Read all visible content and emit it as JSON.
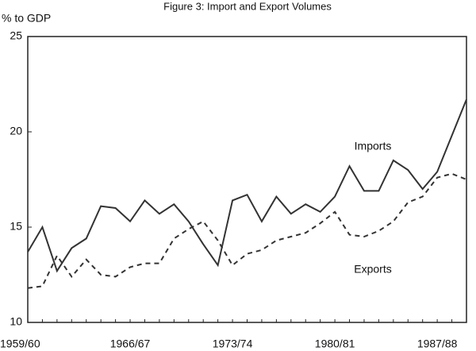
{
  "chart_data": {
    "type": "line",
    "title": "Figure 3: Import and Export Volumes",
    "y_label": "% to GDP",
    "categories": [
      "1959/60",
      null,
      null,
      null,
      null,
      null,
      null,
      "1966/67",
      null,
      null,
      null,
      null,
      null,
      null,
      "1973/74",
      null,
      null,
      null,
      null,
      null,
      null,
      "1980/81",
      null,
      null,
      null,
      null,
      null,
      null,
      "1987/88",
      null,
      null
    ],
    "series": [
      {
        "name": "Imports",
        "color": "#333333",
        "dashed": false,
        "values": [
          13.7,
          15.0,
          12.7,
          13.9,
          14.4,
          16.1,
          16.0,
          15.3,
          16.4,
          15.7,
          16.2,
          15.3,
          14.1,
          13.0,
          16.4,
          16.7,
          15.3,
          16.6,
          15.7,
          16.2,
          15.8,
          16.6,
          18.2,
          16.9,
          16.9,
          18.5,
          18.0,
          17.0,
          17.9,
          19.8,
          21.7
        ]
      },
      {
        "name": "Exports",
        "color": "#333333",
        "dashed": true,
        "values": [
          11.8,
          11.9,
          13.5,
          12.4,
          13.3,
          12.5,
          12.4,
          12.9,
          13.1,
          13.1,
          14.4,
          14.9,
          15.3,
          14.3,
          13.0,
          13.6,
          13.8,
          14.3,
          14.5,
          14.7,
          15.2,
          15.8,
          14.6,
          14.5,
          14.8,
          15.3,
          16.3,
          16.6,
          17.6,
          17.8,
          17.5
        ]
      }
    ],
    "ylim": [
      10,
      25
    ],
    "yticks": [
      10,
      15,
      20,
      25
    ]
  }
}
